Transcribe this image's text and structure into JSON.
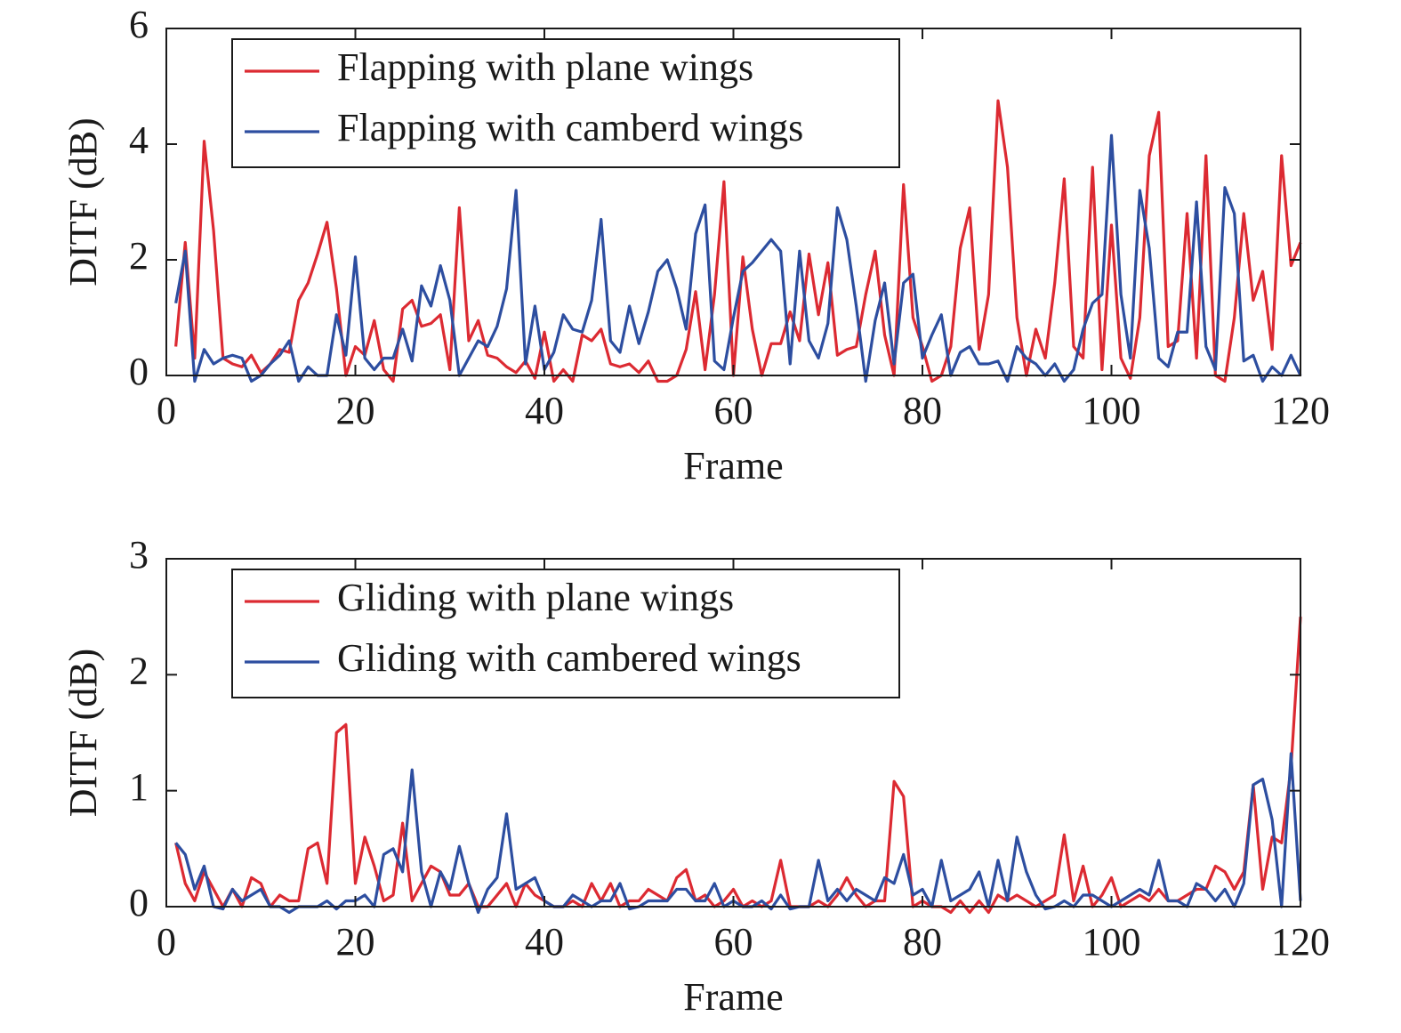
{
  "chart_data": [
    {
      "type": "line",
      "xlabel": "Frame",
      "ylabel": "DITF (dB)",
      "x": [
        1,
        2,
        3,
        4,
        5,
        6,
        7,
        8,
        9,
        10,
        11,
        12,
        13,
        14,
        15,
        16,
        17,
        18,
        19,
        20,
        21,
        22,
        23,
        24,
        25,
        26,
        27,
        28,
        29,
        30,
        31,
        32,
        33,
        34,
        35,
        36,
        37,
        38,
        39,
        40,
        41,
        42,
        43,
        44,
        45,
        46,
        47,
        48,
        49,
        50,
        51,
        52,
        53,
        54,
        55,
        56,
        57,
        58,
        59,
        60,
        61,
        62,
        63,
        64,
        65,
        66,
        67,
        68,
        69,
        70,
        71,
        72,
        73,
        74,
        75,
        76,
        77,
        78,
        79,
        80,
        81,
        82,
        83,
        84,
        85,
        86,
        87,
        88,
        89,
        90,
        91,
        92,
        93,
        94,
        95,
        96,
        97,
        98,
        99,
        100,
        101,
        102,
        103,
        104,
        105,
        106,
        107,
        108,
        109,
        110,
        111,
        112,
        113,
        114,
        115,
        116,
        117,
        118,
        119,
        120
      ],
      "series": [
        {
          "name": "Flapping with plane wings",
          "color": "#dc2a32",
          "values": [
            0.5,
            2.3,
            0.3,
            4.05,
            2.5,
            0.3,
            0.2,
            0.15,
            0.35,
            0.05,
            0.2,
            0.45,
            0.4,
            1.3,
            1.6,
            2.1,
            2.65,
            1.5,
            0.0,
            0.5,
            0.35,
            0.95,
            0.1,
            -0.1,
            1.15,
            1.3,
            0.85,
            0.9,
            1.05,
            0.1,
            2.9,
            0.6,
            0.95,
            0.35,
            0.3,
            0.15,
            0.05,
            0.25,
            -0.05,
            0.75,
            -0.1,
            0.1,
            -0.1,
            0.7,
            0.6,
            0.8,
            0.2,
            0.15,
            0.2,
            0.05,
            0.25,
            -0.1,
            -0.1,
            0.0,
            0.45,
            1.45,
            0.1,
            1.4,
            3.35,
            0.0,
            2.05,
            0.8,
            0.0,
            0.55,
            0.55,
            1.1,
            0.6,
            2.1,
            1.05,
            1.95,
            0.35,
            0.45,
            0.5,
            1.4,
            2.15,
            0.7,
            0.0,
            3.3,
            1.0,
            0.5,
            -0.1,
            0.0,
            0.5,
            2.2,
            2.9,
            0.45,
            1.4,
            4.75,
            3.6,
            1.0,
            0.0,
            0.8,
            0.3,
            1.6,
            3.4,
            0.5,
            0.3,
            3.6,
            0.1,
            2.6,
            0.3,
            -0.05,
            1.0,
            3.8,
            4.55,
            0.5,
            0.6,
            2.8,
            0.3,
            3.8,
            0.0,
            -0.1,
            1.0,
            2.8,
            1.3,
            1.8,
            0.45,
            3.8,
            1.9,
            2.3
          ]
        },
        {
          "name": "Flapping with camberd wings",
          "color": "#2d4ea0",
          "values": [
            1.25,
            2.15,
            -0.1,
            0.45,
            0.2,
            0.3,
            0.35,
            0.3,
            -0.1,
            0.0,
            0.2,
            0.35,
            0.6,
            -0.1,
            0.15,
            0.0,
            0.0,
            1.05,
            0.35,
            2.05,
            0.3,
            0.1,
            0.3,
            0.3,
            0.8,
            0.25,
            1.55,
            1.2,
            1.9,
            1.3,
            0.0,
            0.3,
            0.6,
            0.5,
            0.85,
            1.5,
            3.2,
            0.2,
            1.2,
            0.1,
            0.4,
            1.05,
            0.8,
            0.75,
            1.3,
            2.7,
            0.6,
            0.4,
            1.2,
            0.55,
            1.1,
            1.8,
            2.0,
            1.5,
            0.8,
            2.45,
            2.95,
            0.25,
            0.1,
            1.0,
            1.8,
            1.95,
            2.15,
            2.35,
            2.15,
            0.2,
            2.15,
            0.6,
            0.3,
            0.9,
            2.9,
            2.35,
            1.2,
            -0.1,
            0.95,
            1.6,
            0.2,
            1.6,
            1.75,
            0.3,
            0.7,
            1.05,
            0.0,
            0.4,
            0.5,
            0.2,
            0.2,
            0.25,
            -0.1,
            0.5,
            0.3,
            0.2,
            0.0,
            0.2,
            -0.1,
            0.1,
            0.8,
            1.25,
            1.4,
            4.15,
            1.4,
            0.3,
            3.2,
            2.2,
            0.3,
            0.15,
            0.75,
            0.75,
            3.0,
            0.5,
            0.1,
            3.25,
            2.8,
            0.25,
            0.35,
            -0.1,
            0.15,
            0.0,
            0.35,
            0.0
          ]
        }
      ],
      "xlim": [
        0,
        120
      ],
      "ylim": [
        0,
        6
      ],
      "xticks": [
        0,
        20,
        40,
        60,
        80,
        100,
        120
      ],
      "yticks": [
        0,
        2,
        4,
        6
      ],
      "legend": "upper left"
    },
    {
      "type": "line",
      "xlabel": "Frame",
      "ylabel": "DITF (dB)",
      "x": [
        1,
        2,
        3,
        4,
        5,
        6,
        7,
        8,
        9,
        10,
        11,
        12,
        13,
        14,
        15,
        16,
        17,
        18,
        19,
        20,
        21,
        22,
        23,
        24,
        25,
        26,
        27,
        28,
        29,
        30,
        31,
        32,
        33,
        34,
        35,
        36,
        37,
        38,
        39,
        40,
        41,
        42,
        43,
        44,
        45,
        46,
        47,
        48,
        49,
        50,
        51,
        52,
        53,
        54,
        55,
        56,
        57,
        58,
        59,
        60,
        61,
        62,
        63,
        64,
        65,
        66,
        67,
        68,
        69,
        70,
        71,
        72,
        73,
        74,
        75,
        76,
        77,
        78,
        79,
        80,
        81,
        82,
        83,
        84,
        85,
        86,
        87,
        88,
        89,
        90,
        91,
        92,
        93,
        94,
        95,
        96,
        97,
        98,
        99,
        100,
        101,
        102,
        103,
        104,
        105,
        106,
        107,
        108,
        109,
        110,
        111,
        112,
        113,
        114,
        115,
        116,
        117,
        118,
        119,
        120
      ],
      "series": [
        {
          "name": "Gliding with plane wings",
          "color": "#dc2a32",
          "values": [
            0.55,
            0.2,
            0.05,
            0.3,
            0.15,
            0.0,
            0.15,
            0.0,
            0.25,
            0.2,
            0.0,
            0.1,
            0.05,
            0.05,
            0.5,
            0.55,
            0.2,
            1.5,
            1.57,
            0.2,
            0.6,
            0.35,
            0.05,
            0.1,
            0.72,
            0.05,
            0.2,
            0.35,
            0.3,
            0.1,
            0.1,
            0.2,
            0.0,
            0.0,
            0.1,
            0.2,
            0.0,
            0.2,
            0.1,
            0.05,
            0.0,
            0.0,
            0.05,
            0.0,
            0.2,
            0.05,
            0.2,
            0.0,
            0.05,
            0.05,
            0.15,
            0.1,
            0.05,
            0.25,
            0.32,
            0.05,
            0.1,
            0.0,
            0.05,
            0.15,
            0.0,
            0.05,
            0.0,
            0.05,
            0.4,
            0.0,
            0.0,
            0.0,
            0.05,
            0.0,
            0.1,
            0.25,
            0.1,
            0.0,
            0.05,
            0.05,
            1.08,
            0.95,
            0.0,
            0.05,
            0.0,
            0.0,
            -0.05,
            0.05,
            -0.05,
            0.05,
            -0.05,
            0.1,
            0.05,
            0.1,
            0.05,
            0.0,
            0.05,
            0.1,
            0.62,
            0.05,
            0.35,
            0.0,
            0.1,
            0.25,
            0.0,
            0.05,
            0.1,
            0.05,
            0.15,
            0.05,
            0.05,
            0.1,
            0.15,
            0.15,
            0.35,
            0.3,
            0.15,
            0.3,
            1.05,
            0.15,
            0.6,
            0.55,
            1.2,
            2.5
          ]
        },
        {
          "name": "Gliding with cambered wings",
          "color": "#2d4ea0",
          "values": [
            0.55,
            0.45,
            0.15,
            0.35,
            0.0,
            -0.02,
            0.15,
            0.05,
            0.1,
            0.15,
            0.0,
            0.0,
            -0.05,
            0.0,
            0.0,
            0.0,
            0.05,
            -0.02,
            0.05,
            0.05,
            0.1,
            0.0,
            0.45,
            0.5,
            0.3,
            1.18,
            0.3,
            0.0,
            0.3,
            0.15,
            0.52,
            0.2,
            -0.05,
            0.15,
            0.25,
            0.8,
            0.15,
            0.2,
            0.25,
            0.05,
            0.0,
            0.0,
            0.1,
            0.05,
            0.0,
            0.05,
            0.05,
            0.2,
            -0.02,
            0.0,
            0.05,
            0.05,
            0.05,
            0.15,
            0.15,
            0.05,
            0.05,
            0.2,
            0.0,
            0.05,
            0.0,
            0.0,
            0.05,
            -0.02,
            0.1,
            -0.02,
            0.0,
            0.0,
            0.4,
            0.05,
            0.15,
            0.05,
            0.15,
            0.1,
            0.05,
            0.25,
            0.2,
            0.45,
            0.1,
            0.15,
            0.0,
            0.4,
            0.05,
            0.1,
            0.15,
            0.3,
            0.0,
            0.4,
            0.05,
            0.6,
            0.3,
            0.1,
            -0.02,
            0.0,
            0.05,
            0.0,
            0.1,
            0.1,
            0.05,
            0.0,
            0.05,
            0.1,
            0.15,
            0.1,
            0.4,
            0.05,
            0.05,
            0.0,
            0.2,
            0.15,
            0.05,
            0.15,
            0.0,
            0.2,
            1.05,
            1.1,
            0.75,
            0.0,
            1.32,
            0.05
          ]
        }
      ],
      "xlim": [
        0,
        120
      ],
      "ylim": [
        0,
        3
      ],
      "xticks": [
        0,
        20,
        40,
        60,
        80,
        100,
        120
      ],
      "yticks": [
        0,
        1,
        2,
        3
      ],
      "legend": "upper left"
    }
  ]
}
